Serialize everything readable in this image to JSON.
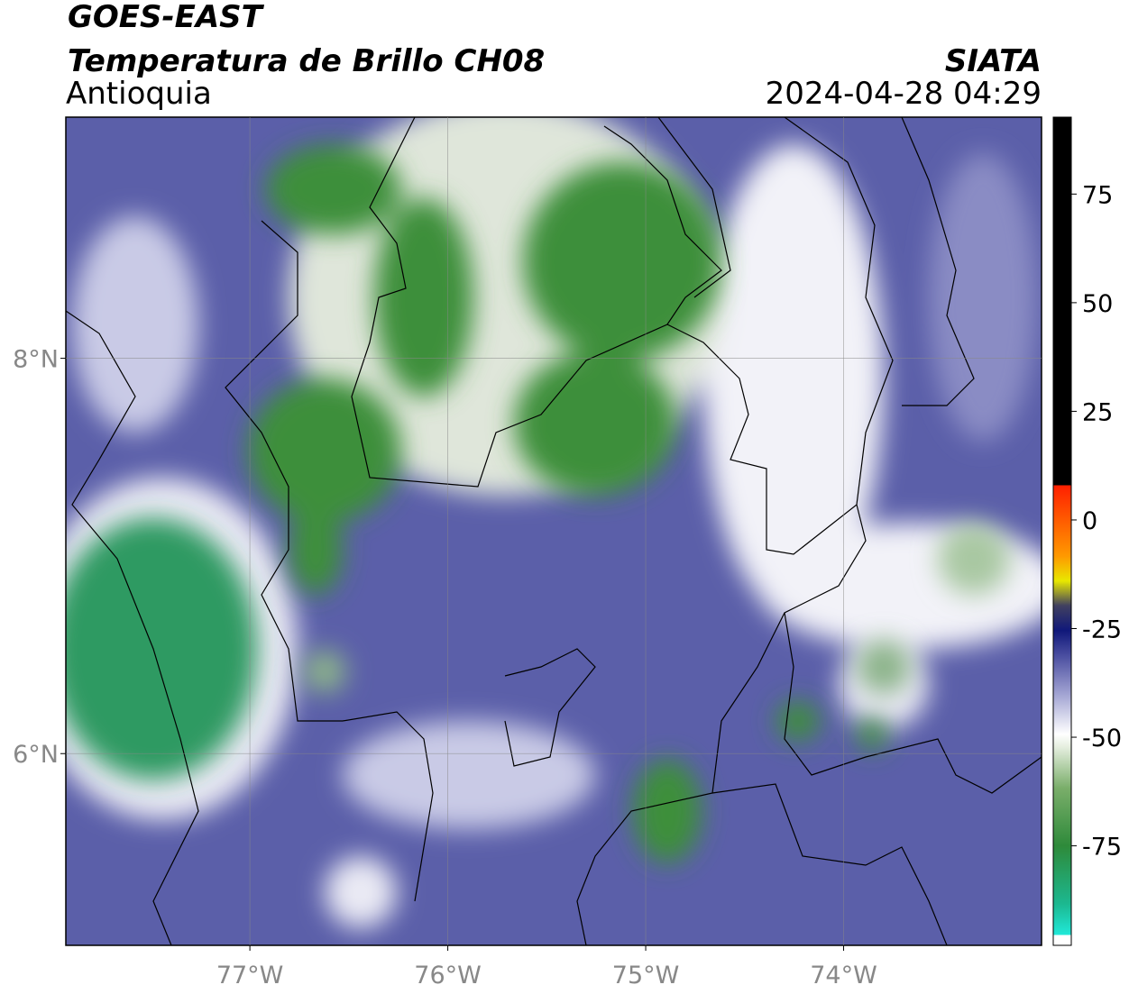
{
  "header": {
    "satellite": "GOES-EAST",
    "product": "Temperatura de Brillo CH08",
    "region": "Antioquia",
    "source": "SIATA",
    "datetime": "2024-04-28 04:29"
  },
  "map": {
    "xlim": [
      -77.93,
      -73.0
    ],
    "ylim": [
      5.03,
      9.22
    ],
    "xticks": [
      {
        "value": -77,
        "label": "77°W"
      },
      {
        "value": -76,
        "label": "76°W"
      },
      {
        "value": -75,
        "label": "75°W"
      },
      {
        "value": -74,
        "label": "74°W"
      }
    ],
    "yticks": [
      {
        "value": 6,
        "label": "6°N"
      },
      {
        "value": 8,
        "label": "8°N"
      }
    ],
    "grid": true
  },
  "colorbar": {
    "lim": [
      -97.9,
      92.7
    ],
    "ticks": [
      -75,
      -50,
      -25,
      0,
      25,
      50,
      75
    ]
  }
}
